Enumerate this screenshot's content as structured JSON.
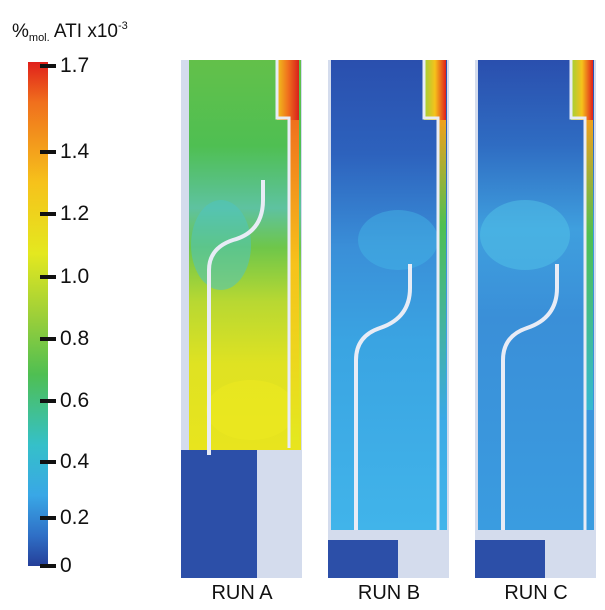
{
  "colorbar": {
    "title_prefix": "%",
    "title_subscript": "mol.",
    "title_main": " ATI x10",
    "title_superscript": "-3",
    "ticks": [
      "1.7",
      "1.4",
      "1.2",
      "1.0",
      "0.8",
      "0.6",
      "0.4",
      "0.2",
      "0"
    ],
    "tick_values": [
      1.7,
      1.4,
      1.2,
      1.0,
      0.8,
      0.6,
      0.4,
      0.2,
      0
    ],
    "colors": [
      "#253f99",
      "#2f6fc6",
      "#39a7e6",
      "#35c0c9",
      "#4fbf52",
      "#9fd038",
      "#e4e81f",
      "#f6c21b",
      "#f0701d",
      "#e0201b"
    ]
  },
  "panels": [
    {
      "label": "RUN A",
      "background": "#6ec24a"
    },
    {
      "label": "RUN B",
      "background": "#2a4fae"
    },
    {
      "label": "RUN C",
      "background": "#2a4fae"
    }
  ]
}
